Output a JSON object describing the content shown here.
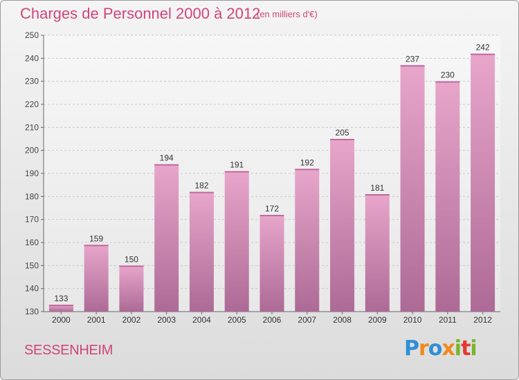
{
  "header": {
    "title": "Charges de Personnel 2000 à 2012",
    "unit": "(en milliers d'€)"
  },
  "footer": {
    "city": "SESSENHEIM",
    "logo_letters": [
      "P",
      "r",
      "o",
      "x",
      "i",
      "t",
      "i"
    ],
    "logo_colors": [
      "#2f8fd6",
      "#f08a1c",
      "#2f8fd6",
      "#f08a1c",
      "#7ab42b",
      "#e53935",
      "#7ab42b"
    ]
  },
  "colors": {
    "bar_top": "#e8a6cb",
    "bar_bottom": "#ad6a96",
    "title": "#d0457a",
    "grid": "#c8c8c8",
    "axis": "#666666"
  },
  "chart_data": {
    "type": "bar",
    "title": "Charges de Personnel 2000 à 2012",
    "xlabel": "",
    "ylabel": "",
    "categories": [
      "2000",
      "2001",
      "2002",
      "2003",
      "2004",
      "2005",
      "2006",
      "2007",
      "2008",
      "2009",
      "2010",
      "2011",
      "2012"
    ],
    "values": [
      133,
      159,
      150,
      194,
      182,
      191,
      172,
      192,
      205,
      181,
      237,
      230,
      242
    ],
    "ylim": [
      130,
      250
    ],
    "yticks": [
      130,
      140,
      150,
      160,
      170,
      180,
      190,
      200,
      210,
      220,
      230,
      240,
      250
    ],
    "grid": true,
    "legend": "none"
  }
}
